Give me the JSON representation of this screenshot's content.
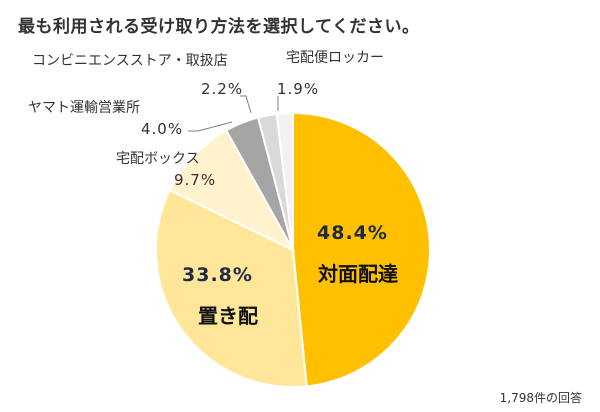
{
  "chart_data": {
    "type": "pie",
    "title": "最も利用される受け取り方法を選択してください。",
    "categories": [
      "対面配達",
      "置き配",
      "宅配ボックス",
      "ヤマト運輸営業所",
      "コンビニエンスストア・取扱店",
      "宅配便ロッカー"
    ],
    "values": [
      48.4,
      33.8,
      9.7,
      4.0,
      2.2,
      1.9
    ],
    "value_labels": [
      "48.4%",
      "33.8%",
      "9.7%",
      "4.0%",
      "2.2%",
      "1.9%"
    ],
    "colors": [
      "#FFC000",
      "#FFE699",
      "#FFF2CC",
      "#A5A5A5",
      "#D9D9D9",
      "#F2F2F2"
    ],
    "start_angle": "12 o'clock, clockwise",
    "legend": "none (data labels)",
    "annotation": "1,798件の回答"
  },
  "title": "最も利用される受け取り方法を選択してください。",
  "labels": {
    "face": {
      "name": "対面配達",
      "pct": "48.4%"
    },
    "okihai": {
      "name": "置き配",
      "pct": "33.8%"
    },
    "box": {
      "name": "宅配ボックス",
      "pct": "9.7%"
    },
    "yamato": {
      "name": "ヤマト運輸営業所",
      "pct": "4.0%"
    },
    "conv": {
      "name": "コンビニエンスストア・取扱店",
      "pct": "2.2%"
    },
    "locker": {
      "name": "宅配便ロッカー",
      "pct": "1.9%"
    }
  },
  "footnote": "1,798件の回答"
}
